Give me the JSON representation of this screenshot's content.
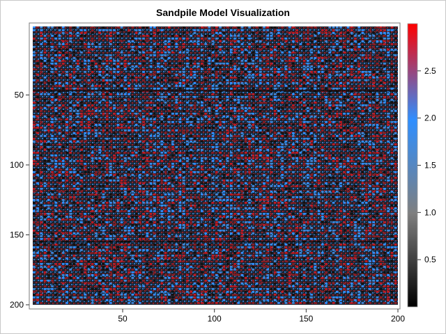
{
  "chart_data": {
    "type": "heatmap",
    "title": "Sandpile Model Visualization",
    "xlabel": "",
    "ylabel": "",
    "grid_size": [
      200,
      200
    ],
    "x_range": [
      1,
      200
    ],
    "y_range": [
      1,
      200
    ],
    "y_axis_reversed": true,
    "x_ticks": [
      50,
      100,
      150,
      200
    ],
    "y_ticks": [
      50,
      100,
      150,
      200
    ],
    "value_range": [
      0,
      3
    ],
    "color_scale": [
      "#000000",
      "#7f7f7f",
      "#2f8fff",
      "#ff0000"
    ],
    "colorbar_ticks": [
      0.5,
      1.0,
      1.5,
      2.0,
      2.5
    ],
    "colorbar_tick_labels": [
      "0.5",
      "1.0",
      "1.5",
      "2.0",
      "2.5"
    ],
    "cell_colors_observed": [
      "black",
      "blue",
      "red"
    ],
    "notes_visible": "dark horizontal bands near rows 47 and 155"
  }
}
